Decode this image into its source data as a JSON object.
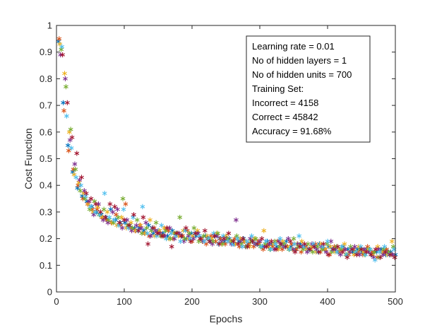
{
  "chart_data": {
    "type": "scatter",
    "marker": "asterisk",
    "xlabel": "Epochs",
    "ylabel": "Cost Function",
    "xlim": [
      0,
      500
    ],
    "ylim": [
      0,
      1
    ],
    "xticks": [
      0,
      100,
      200,
      300,
      400,
      500
    ],
    "yticks": [
      0,
      0.1,
      0.2,
      0.3,
      0.4,
      0.5,
      0.6,
      0.7,
      0.8,
      0.9,
      1
    ],
    "xtick_labels": [
      "0",
      "100",
      "200",
      "300",
      "400",
      "500"
    ],
    "ytick_labels": [
      "0",
      "0.1",
      "0.2",
      "0.3",
      "0.4",
      "0.5",
      "0.6",
      "0.7",
      "0.8",
      "0.9",
      "1"
    ],
    "grid": false,
    "colors": [
      "#0072BD",
      "#D95319",
      "#EDB120",
      "#7E2F8E",
      "#77AC30",
      "#4DBEEE",
      "#A2142F"
    ],
    "annotation": {
      "placement": "top-right",
      "lines": [
        "Learning rate = 0.01",
        "No of hidden layers = 1",
        "No of hidden units = 700",
        "Training Set:",
        "Incorrect = 4158",
        "Correct = 45842",
        "Accuracy = 91.68%"
      ]
    },
    "series": [
      {
        "color": "#0072BD",
        "x": [
          3,
          10,
          17,
          24,
          31,
          38,
          45,
          52,
          59,
          66,
          73,
          80,
          87,
          94,
          101,
          108,
          115,
          122,
          129,
          136,
          143,
          150,
          157,
          164,
          171,
          178,
          185,
          192,
          199,
          206,
          213,
          220,
          227,
          234,
          241,
          248,
          255,
          262,
          269,
          276,
          283,
          290,
          297,
          304,
          311,
          318,
          325,
          332,
          339,
          346,
          353,
          360,
          367,
          374,
          381,
          388,
          395,
          402,
          409,
          416,
          423,
          430,
          437,
          444,
          451,
          458,
          465,
          472,
          479,
          486,
          493,
          500
        ],
        "y": [
          0.94,
          0.71,
          0.55,
          0.45,
          0.39,
          0.36,
          0.34,
          0.32,
          0.3,
          0.29,
          0.28,
          0.31,
          0.27,
          0.26,
          0.26,
          0.25,
          0.24,
          0.24,
          0.23,
          0.25,
          0.22,
          0.23,
          0.22,
          0.21,
          0.23,
          0.22,
          0.21,
          0.2,
          0.22,
          0.21,
          0.2,
          0.21,
          0.19,
          0.21,
          0.2,
          0.19,
          0.2,
          0.18,
          0.19,
          0.2,
          0.18,
          0.19,
          0.18,
          0.17,
          0.19,
          0.18,
          0.17,
          0.18,
          0.19,
          0.17,
          0.16,
          0.18,
          0.17,
          0.16,
          0.17,
          0.18,
          0.16,
          0.17,
          0.16,
          0.15,
          0.17,
          0.16,
          0.15,
          0.16,
          0.15,
          0.16,
          0.14,
          0.15,
          0.16,
          0.14,
          0.15,
          0.14
        ]
      },
      {
        "color": "#D95319",
        "x": [
          4,
          11,
          18,
          25,
          32,
          39,
          46,
          53,
          60,
          67,
          74,
          81,
          88,
          95,
          102,
          109,
          116,
          123,
          130,
          137,
          144,
          151,
          158,
          165,
          172,
          179,
          186,
          193,
          200,
          207,
          214,
          221,
          228,
          235,
          242,
          249,
          256,
          263,
          270,
          277,
          284,
          291,
          298,
          305,
          312,
          319,
          326,
          333,
          340,
          347,
          354,
          361,
          368,
          375,
          382,
          389,
          396,
          403,
          410,
          417,
          424,
          431,
          438,
          445,
          452,
          459,
          466,
          473,
          480,
          487,
          494,
          499
        ],
        "y": [
          0.95,
          0.68,
          0.53,
          0.46,
          0.4,
          0.35,
          0.33,
          0.31,
          0.31,
          0.28,
          0.27,
          0.26,
          0.29,
          0.25,
          0.33,
          0.24,
          0.23,
          0.25,
          0.22,
          0.21,
          0.24,
          0.22,
          0.21,
          0.23,
          0.2,
          0.22,
          0.21,
          0.23,
          0.19,
          0.22,
          0.2,
          0.18,
          0.21,
          0.19,
          0.2,
          0.18,
          0.19,
          0.2,
          0.17,
          0.19,
          0.18,
          0.17,
          0.19,
          0.16,
          0.18,
          0.17,
          0.19,
          0.16,
          0.17,
          0.18,
          0.16,
          0.15,
          0.17,
          0.16,
          0.18,
          0.15,
          0.16,
          0.14,
          0.17,
          0.15,
          0.16,
          0.14,
          0.16,
          0.15,
          0.14,
          0.17,
          0.15,
          0.13,
          0.15,
          0.16,
          0.14,
          0.13
        ]
      },
      {
        "color": "#EDB120",
        "x": [
          5,
          12,
          19,
          26,
          33,
          40,
          47,
          54,
          61,
          68,
          75,
          82,
          89,
          96,
          103,
          110,
          117,
          124,
          131,
          138,
          145,
          152,
          159,
          166,
          173,
          180,
          187,
          194,
          201,
          208,
          215,
          222,
          229,
          236,
          243,
          250,
          257,
          264,
          271,
          278,
          285,
          292,
          299,
          306,
          313,
          320,
          327,
          334,
          341,
          348,
          355,
          362,
          369,
          376,
          383,
          390,
          397,
          404,
          411,
          418,
          425,
          432,
          439,
          446,
          453,
          460,
          467,
          474,
          481,
          488,
          495
        ],
        "y": [
          0.93,
          0.82,
          0.6,
          0.44,
          0.41,
          0.37,
          0.33,
          0.3,
          0.32,
          0.28,
          0.3,
          0.26,
          0.25,
          0.28,
          0.24,
          0.26,
          0.23,
          0.25,
          0.22,
          0.27,
          0.21,
          0.23,
          0.24,
          0.2,
          0.22,
          0.21,
          0.23,
          0.2,
          0.21,
          0.23,
          0.19,
          0.21,
          0.2,
          0.22,
          0.18,
          0.21,
          0.19,
          0.18,
          0.2,
          0.19,
          0.17,
          0.2,
          0.18,
          0.23,
          0.17,
          0.18,
          0.16,
          0.19,
          0.17,
          0.16,
          0.18,
          0.19,
          0.16,
          0.17,
          0.15,
          0.18,
          0.16,
          0.17,
          0.15,
          0.16,
          0.18,
          0.15,
          0.14,
          0.17,
          0.15,
          0.16,
          0.14,
          0.17,
          0.15,
          0.14,
          0.19
        ]
      },
      {
        "color": "#7E2F8E",
        "x": [
          6,
          13,
          20,
          27,
          34,
          41,
          48,
          55,
          62,
          69,
          76,
          83,
          90,
          97,
          104,
          111,
          118,
          125,
          132,
          139,
          146,
          153,
          160,
          167,
          174,
          181,
          188,
          195,
          202,
          209,
          216,
          223,
          230,
          237,
          244,
          251,
          258,
          265,
          272,
          279,
          286,
          293,
          300,
          307,
          314,
          321,
          328,
          335,
          342,
          349,
          356,
          363,
          370,
          377,
          384,
          391,
          398,
          405,
          412,
          419,
          426,
          433,
          440,
          447,
          454,
          461,
          468,
          475,
          482,
          489,
          496
        ],
        "y": [
          0.89,
          0.8,
          0.57,
          0.48,
          0.42,
          0.38,
          0.34,
          0.29,
          0.33,
          0.27,
          0.26,
          0.3,
          0.31,
          0.24,
          0.27,
          0.23,
          0.25,
          0.24,
          0.26,
          0.21,
          0.23,
          0.22,
          0.21,
          0.24,
          0.2,
          0.22,
          0.19,
          0.21,
          0.2,
          0.22,
          0.19,
          0.2,
          0.18,
          0.21,
          0.19,
          0.2,
          0.18,
          0.27,
          0.19,
          0.17,
          0.2,
          0.18,
          0.19,
          0.17,
          0.18,
          0.16,
          0.19,
          0.17,
          0.2,
          0.16,
          0.18,
          0.17,
          0.15,
          0.18,
          0.16,
          0.17,
          0.15,
          0.19,
          0.16,
          0.14,
          0.16,
          0.15,
          0.17,
          0.14,
          0.16,
          0.15,
          0.13,
          0.16,
          0.14,
          0.15,
          0.14
        ]
      },
      {
        "color": "#77AC30",
        "x": [
          7,
          14,
          21,
          28,
          35,
          42,
          49,
          56,
          63,
          70,
          77,
          84,
          91,
          98,
          105,
          112,
          119,
          126,
          133,
          140,
          147,
          154,
          161,
          168,
          175,
          182,
          189,
          196,
          203,
          210,
          217,
          224,
          231,
          238,
          245,
          252,
          259,
          266,
          273,
          280,
          287,
          294,
          301,
          308,
          315,
          322,
          329,
          336,
          343,
          350,
          357,
          364,
          371,
          378,
          385,
          392,
          399,
          406,
          413,
          420,
          427,
          434,
          441,
          448,
          455,
          462,
          469,
          476,
          483,
          490,
          497
        ],
        "y": [
          0.91,
          0.77,
          0.61,
          0.46,
          0.38,
          0.35,
          0.31,
          0.34,
          0.29,
          0.31,
          0.27,
          0.26,
          0.28,
          0.35,
          0.25,
          0.24,
          0.27,
          0.22,
          0.24,
          0.23,
          0.26,
          0.21,
          0.23,
          0.2,
          0.22,
          0.28,
          0.2,
          0.22,
          0.24,
          0.19,
          0.21,
          0.2,
          0.19,
          0.22,
          0.18,
          0.2,
          0.19,
          0.21,
          0.18,
          0.17,
          0.19,
          0.2,
          0.17,
          0.18,
          0.16,
          0.19,
          0.17,
          0.18,
          0.16,
          0.2,
          0.17,
          0.16,
          0.18,
          0.15,
          0.17,
          0.16,
          0.18,
          0.15,
          0.17,
          0.16,
          0.14,
          0.17,
          0.15,
          0.16,
          0.14,
          0.16,
          0.15,
          0.13,
          0.16,
          0.15,
          0.17
        ]
      },
      {
        "color": "#4DBEEE",
        "x": [
          8,
          15,
          22,
          29,
          36,
          43,
          50,
          57,
          64,
          71,
          78,
          85,
          92,
          99,
          106,
          113,
          120,
          127,
          134,
          141,
          148,
          155,
          162,
          169,
          176,
          183,
          190,
          197,
          204,
          211,
          218,
          225,
          232,
          239,
          246,
          253,
          260,
          267,
          274,
          281,
          288,
          295,
          302,
          309,
          316,
          323,
          330,
          337,
          344,
          351,
          358,
          365,
          372,
          379,
          386,
          393,
          400,
          407,
          414,
          421,
          428,
          435,
          442,
          449,
          456,
          463,
          470,
          477,
          484,
          491,
          498
        ],
        "y": [
          0.92,
          0.66,
          0.54,
          0.43,
          0.4,
          0.36,
          0.32,
          0.3,
          0.29,
          0.37,
          0.28,
          0.27,
          0.25,
          0.31,
          0.24,
          0.28,
          0.23,
          0.32,
          0.22,
          0.24,
          0.21,
          0.25,
          0.2,
          0.22,
          0.21,
          0.19,
          0.23,
          0.2,
          0.22,
          0.21,
          0.19,
          0.2,
          0.22,
          0.18,
          0.21,
          0.19,
          0.18,
          0.2,
          0.17,
          0.19,
          0.21,
          0.18,
          0.17,
          0.19,
          0.16,
          0.18,
          0.2,
          0.17,
          0.16,
          0.18,
          0.21,
          0.17,
          0.16,
          0.18,
          0.15,
          0.17,
          0.19,
          0.16,
          0.15,
          0.17,
          0.14,
          0.16,
          0.15,
          0.17,
          0.14,
          0.16,
          0.12,
          0.15,
          0.17,
          0.14,
          0.16
        ]
      },
      {
        "color": "#A2142F",
        "x": [
          9,
          16,
          23,
          30,
          37,
          44,
          51,
          58,
          65,
          72,
          79,
          86,
          93,
          100,
          107,
          114,
          121,
          128,
          135,
          142,
          149,
          156,
          163,
          170,
          177,
          184,
          191,
          198,
          205,
          212,
          219,
          226,
          233,
          240,
          247,
          254,
          261,
          268,
          275,
          282,
          289,
          296,
          303,
          310,
          317,
          324,
          331,
          338,
          345,
          352,
          359,
          366,
          373,
          380,
          387,
          394,
          401,
          408,
          415,
          422,
          429,
          436,
          443,
          450,
          457,
          464,
          471,
          478,
          485,
          492,
          499
        ],
        "y": [
          0.89,
          0.71,
          0.58,
          0.52,
          0.43,
          0.37,
          0.35,
          0.33,
          0.3,
          0.28,
          0.33,
          0.32,
          0.26,
          0.27,
          0.25,
          0.29,
          0.23,
          0.28,
          0.18,
          0.24,
          0.22,
          0.21,
          0.24,
          0.17,
          0.22,
          0.21,
          0.24,
          0.19,
          0.22,
          0.2,
          0.23,
          0.19,
          0.21,
          0.18,
          0.2,
          0.22,
          0.19,
          0.18,
          0.2,
          0.17,
          0.19,
          0.18,
          0.2,
          0.17,
          0.19,
          0.16,
          0.18,
          0.17,
          0.19,
          0.15,
          0.17,
          0.18,
          0.16,
          0.17,
          0.15,
          0.18,
          0.14,
          0.16,
          0.17,
          0.15,
          0.13,
          0.16,
          0.14,
          0.16,
          0.15,
          0.14,
          0.16,
          0.13,
          0.15,
          0.14,
          0.13
        ]
      }
    ]
  }
}
